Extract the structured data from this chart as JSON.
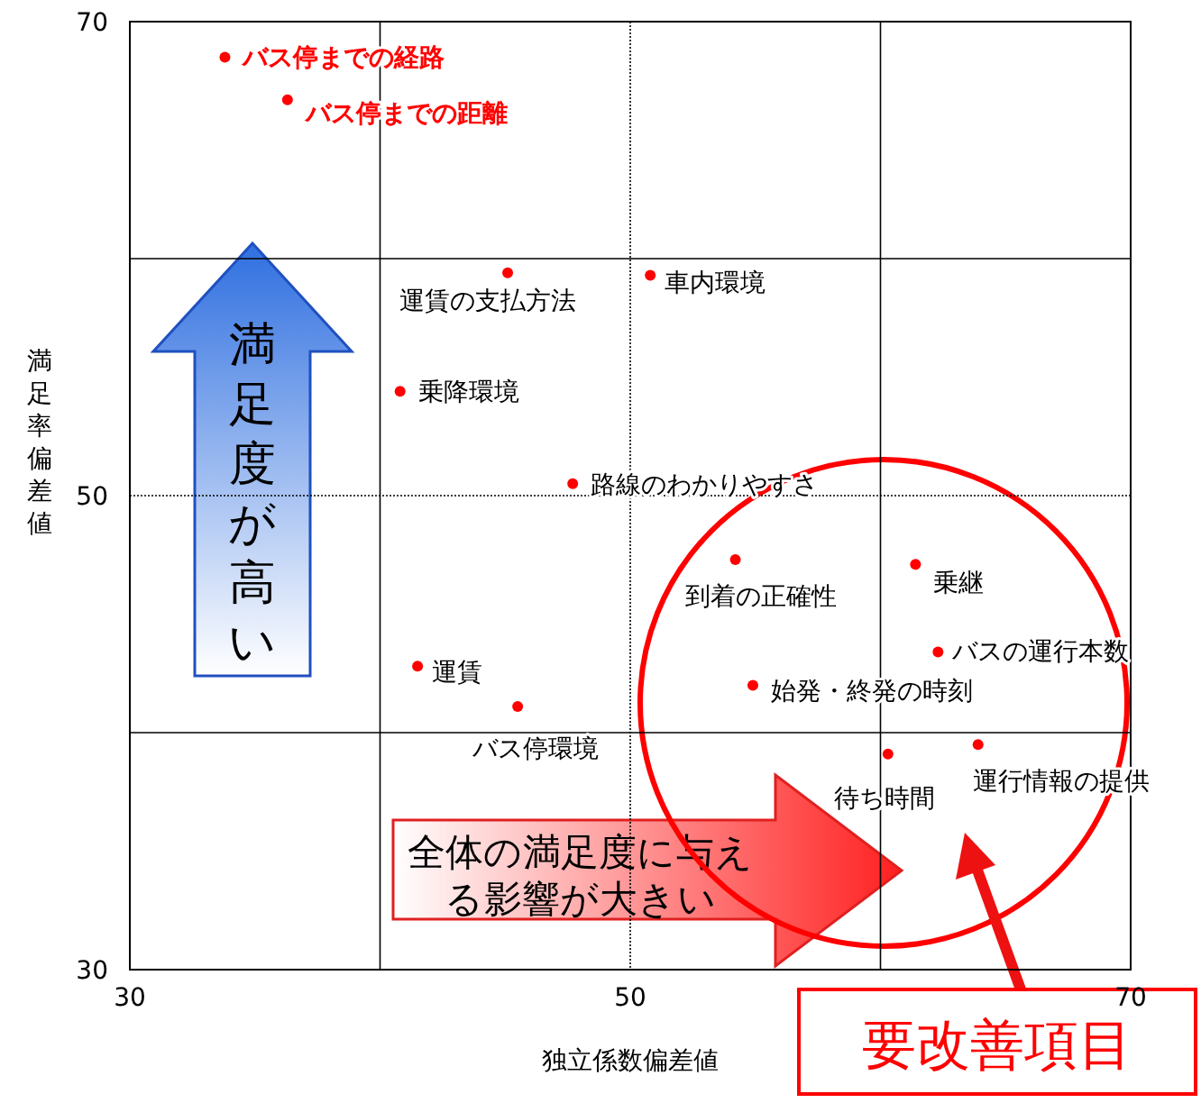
{
  "chart_data": {
    "type": "scatter",
    "xlabel": "独立係数偏差値",
    "ylabel": "満足率偏差値",
    "xlim": [
      30,
      70
    ],
    "xticks": [
      30,
      {
        "value": 40,
        "label": null
      },
      50,
      {
        "value": 60,
        "label": null
      },
      70
    ],
    "ylim": [
      30,
      70
    ],
    "yticks": [
      30,
      {
        "value": 40,
        "label": null
      },
      50,
      {
        "value": 60,
        "label": null
      },
      70
    ],
    "grid": true,
    "marker": "circle",
    "series": [
      {
        "color": "#ff0000",
        "x": [
          33.8,
          36.3
        ],
        "values": [
          68.5,
          66.7
        ],
        "value_labels": [
          "バス停までの経路",
          "バス停までの距離"
        ]
      },
      {
        "color": "#ff0000",
        "x": [
          45.1,
          50.8,
          40.8,
          47.7,
          54.2,
          61.4,
          62.3,
          54.9,
          41.5,
          45.5,
          60.3,
          63.9
        ],
        "values": [
          59.4,
          59.3,
          54.4,
          50.5,
          47.3,
          47.1,
          43.4,
          42.0,
          42.8,
          41.1,
          39.1,
          39.5
        ],
        "value_labels": [
          "運賃の支払方法",
          "車内環境",
          "乗降環境",
          "路線のわかりやすさ",
          "到着の正確性",
          "乗継",
          "バスの運行本数",
          "始発・終発の時刻",
          "運賃",
          "バス停環境",
          "待ち時間",
          "運行情報の提供"
        ]
      }
    ],
    "annotations": [
      "満足度が高い",
      "全体の満足度に与える影響が大きい",
      "要改善項目"
    ]
  }
}
